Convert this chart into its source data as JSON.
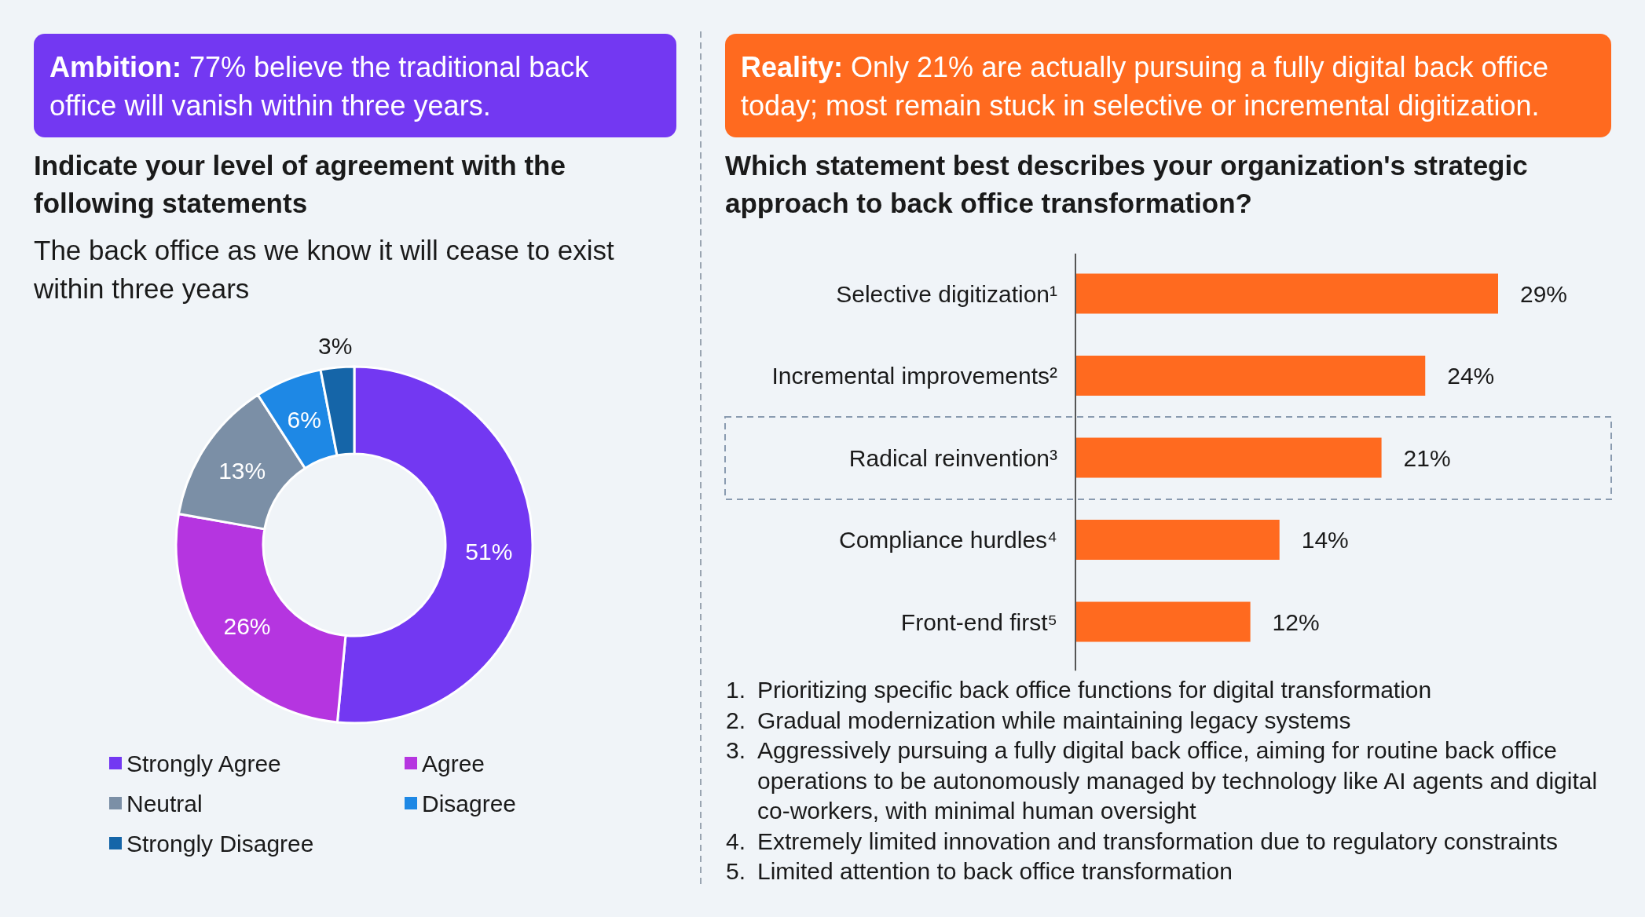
{
  "chart_data": [
    {
      "type": "other",
      "title": "Ambition:",
      "subtitle": "77% believe the traditional back office will vanish within three years.",
      "color": "#7338f2"
    },
    {
      "type": "donut",
      "title": "Indicate your level of agreement with the following statements",
      "subtitle": "The back office as we know it will cease to exist within three years",
      "categories": [
        "Strongly Agree",
        "Agree",
        "Neutral",
        "Disagree",
        "Strongly Disagree"
      ],
      "values": [
        51,
        26,
        13,
        6,
        3
      ],
      "value_labels": [
        "51%",
        "26%",
        "13%",
        "6%",
        "3%"
      ],
      "colors": [
        "#7338f2",
        "#b535e0",
        "#7b8fa6",
        "#1e88e5",
        "#1565a8"
      ],
      "legend": "bottom"
    },
    {
      "type": "other",
      "title": "Reality:",
      "subtitle": "Only 21% are actually pursuing a fully digital back office today; most remain stuck in selective or incremental digitization.",
      "color": "#ff6a1f"
    },
    {
      "type": "bar",
      "orientation": "horizontal",
      "title": "Which statement best describes your organization's strategic approach to back office transformation?",
      "categories": [
        "Selective digitization¹",
        "Incremental improvements²",
        "Radical reinvention³",
        "Compliance hurdles⁴",
        "Front-end first⁵"
      ],
      "values": [
        29,
        24,
        21,
        14,
        12
      ],
      "value_labels": [
        "29%",
        "24%",
        "21%",
        "14%",
        "12%"
      ],
      "color": "#ff6a1f",
      "annotations": [
        "1. Prioritizing specific back office functions for digital transformation",
        "2. Gradual modernization while maintaining legacy systems",
        "3. Aggressively pursuing a fully digital back office, aiming for routine back office operations to be autonomously managed by technology like AI agents and digital co-workers, with minimal human oversight",
        "4. Extremely limited innovation and transformation due to regulatory constraints",
        "5. Limited attention to back office transformation"
      ]
    }
  ]
}
